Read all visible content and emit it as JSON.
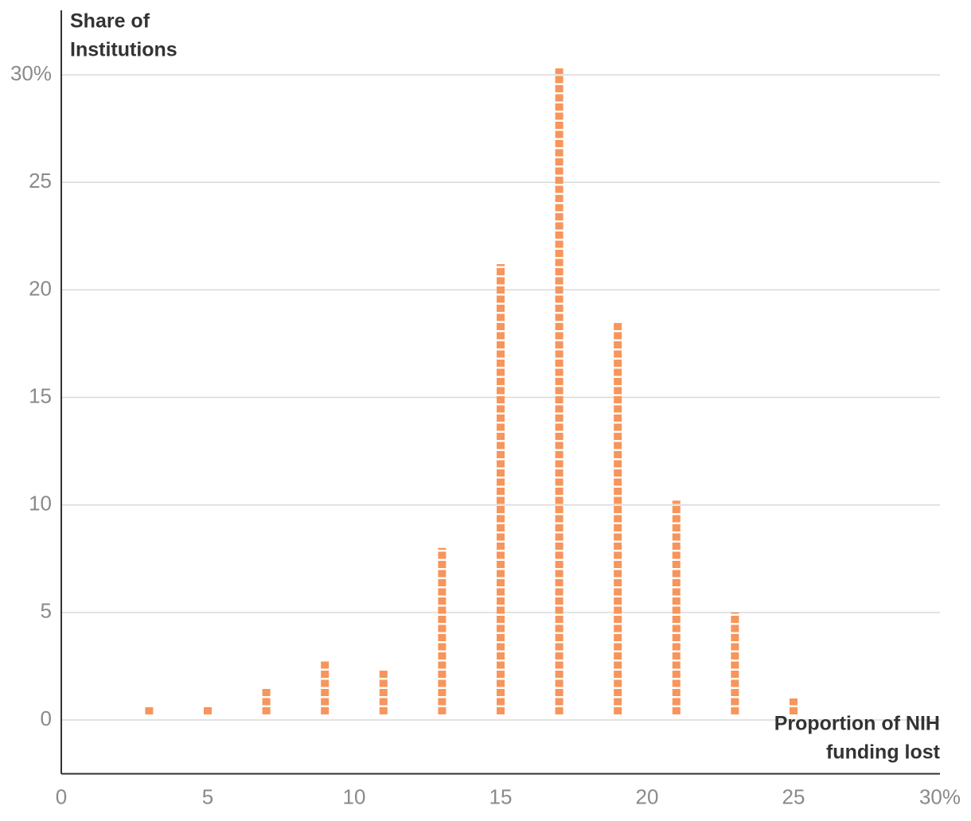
{
  "chart_data": {
    "type": "bar",
    "y_label": [
      "Share of",
      "Institutions"
    ],
    "x_label": [
      "Proportion of NIH",
      "funding lost"
    ],
    "x": [
      3,
      5,
      7,
      9,
      11,
      13,
      15,
      17,
      19,
      21,
      23,
      25
    ],
    "values": [
      0.6,
      0.6,
      1.5,
      2.8,
      2.3,
      8.0,
      21.2,
      30.3,
      18.5,
      10.2,
      5.0,
      1.0
    ],
    "color": "#f7955b",
    "xlim": [
      0,
      30
    ],
    "xticks": [
      0,
      5,
      10,
      15,
      20,
      25,
      {
        "value": 30,
        "label": "30%"
      }
    ],
    "ylim": [
      -2.5,
      33
    ],
    "yticks": [
      0,
      5,
      10,
      15,
      20,
      25,
      {
        "value": 30,
        "label": "30%"
      }
    ],
    "grid": true
  }
}
